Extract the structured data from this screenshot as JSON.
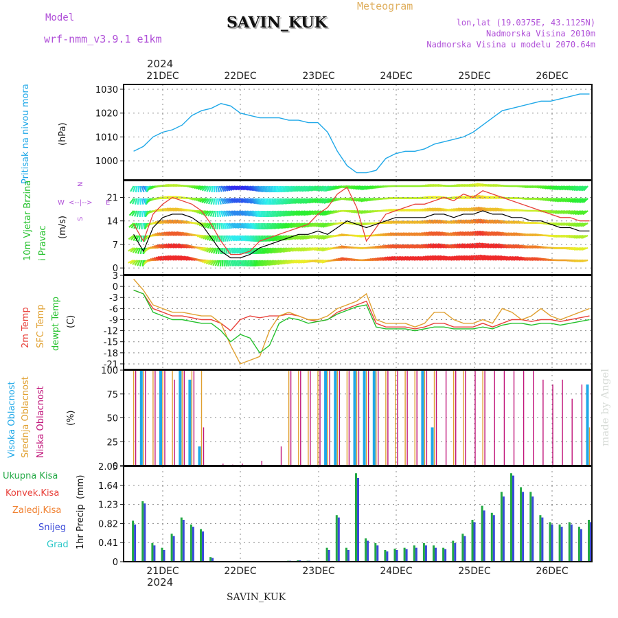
{
  "header": {
    "model_label": "Model",
    "model_name": "wrf-nmm_v3.9.1 e1km",
    "station": "SAVIN_KUK",
    "product": "Meteogram",
    "lonlat": "lon,lat (19.0375E, 43.1125N)",
    "elevation": "Nadmorska Visina 2010m",
    "model_elevation": "Nadmorska Visina u modelu 2070.64m",
    "watermark": "made by Angel",
    "footer_station": "SAVIN_KUK",
    "year_top": "2024",
    "year_bottom": "2024"
  },
  "colors": {
    "pressure": "#1fa8e8",
    "wind_speed": "#000000",
    "wind_gust": "#e8403a",
    "temp_2m": "#e8403a",
    "temp_sfc": "#e0a030",
    "dewpoint": "#22c02a",
    "cloud_high": "#1fa8e8",
    "cloud_mid": "#e0a030",
    "cloud_low": "#c0147a",
    "precip_total": "#22a844",
    "precip_conv": "#e8403a",
    "precip_frozen": "#f08030",
    "precip_snow": "#3a4ad8",
    "precip_graupel": "#2ac8c8",
    "label_purple": "#b050d8",
    "label_gold": "#e0b060"
  },
  "time_axis": {
    "day_labels": [
      "21DEC",
      "22DEC",
      "23DEC",
      "24DEC",
      "25DEC",
      "26DEC"
    ],
    "start": "2024-12-20T15:00",
    "end": "2024-12-26T12:00"
  },
  "chart_data": [
    {
      "name": "pressure",
      "type": "line",
      "ylabel": "Pritisak na nivou mora",
      "yunits": "(hPa)",
      "yticks": [
        1000,
        1010,
        1020,
        1030
      ],
      "ylim": [
        992,
        1032
      ],
      "x_hours": [
        0,
        3,
        6,
        9,
        12,
        15,
        18,
        21,
        24,
        27,
        30,
        33,
        36,
        39,
        42,
        45,
        48,
        51,
        54,
        57,
        60,
        63,
        66,
        69,
        72,
        75,
        78,
        81,
        84,
        87,
        90,
        93,
        96,
        99,
        102,
        105,
        108,
        111,
        114,
        117,
        120,
        123,
        126,
        129,
        132,
        135,
        138,
        141
      ],
      "values": [
        1004,
        1006,
        1010,
        1012,
        1013,
        1015,
        1019,
        1021,
        1022,
        1024,
        1023,
        1020,
        1019,
        1018,
        1018,
        1018,
        1017,
        1017,
        1016,
        1016,
        1012,
        1004,
        998,
        995,
        995,
        996,
        1001,
        1003,
        1004,
        1004,
        1005,
        1007,
        1008,
        1009,
        1010,
        1012,
        1015,
        1018,
        1021,
        1022,
        1023,
        1024,
        1025,
        1025,
        1026,
        1027,
        1028,
        1028
      ]
    },
    {
      "name": "wind",
      "type": "line",
      "ylabel": "10m Vjetar Brzina i Pravac",
      "yunits": "(m/s)",
      "yticks": [
        0,
        7,
        14,
        21
      ],
      "ylim": [
        -2,
        26
      ],
      "direction_legend": [
        "N",
        "S",
        "E",
        "W",
        "<--|-->"
      ],
      "x_hours": [
        0,
        3,
        6,
        9,
        12,
        15,
        18,
        21,
        24,
        27,
        30,
        33,
        36,
        39,
        42,
        45,
        48,
        51,
        54,
        57,
        60,
        63,
        66,
        69,
        72,
        75,
        78,
        81,
        84,
        87,
        90,
        93,
        96,
        99,
        102,
        105,
        108,
        111,
        114,
        117,
        120,
        123,
        126,
        129,
        132,
        135,
        138,
        141
      ],
      "series": [
        {
          "name": "speed",
          "values": [
            10,
            5,
            12,
            15,
            16,
            16,
            15,
            13,
            9,
            5,
            3,
            3,
            4,
            6,
            7,
            8,
            9,
            10,
            10,
            11,
            10,
            12,
            14,
            13,
            12,
            13,
            14,
            15,
            15,
            15,
            15,
            16,
            16,
            15,
            16,
            16,
            17,
            16,
            16,
            15,
            15,
            14,
            14,
            13,
            12,
            12,
            11,
            11
          ]
        },
        {
          "name": "gust",
          "values": [
            13,
            8,
            16,
            19,
            21,
            20,
            19,
            17,
            13,
            8,
            4,
            4,
            5,
            8,
            9,
            10,
            11,
            12,
            13,
            16,
            18,
            22,
            24,
            18,
            8,
            12,
            16,
            17,
            18,
            19,
            19,
            20,
            21,
            20,
            22,
            21,
            23,
            22,
            21,
            20,
            19,
            18,
            17,
            16,
            15,
            15,
            14,
            14
          ]
        }
      ]
    },
    {
      "name": "temperature",
      "type": "line",
      "ylabel_parts": [
        "2m Temp",
        "SFC Temp",
        "dewpt Temp"
      ],
      "yunits": "(C)",
      "yticks": [
        3,
        0,
        -3,
        -6,
        -9,
        -12,
        -15,
        -18,
        -21
      ],
      "ylim": [
        -22.5,
        3
      ],
      "x_hours": [
        0,
        3,
        6,
        9,
        12,
        15,
        18,
        21,
        24,
        27,
        30,
        33,
        36,
        39,
        42,
        45,
        48,
        51,
        54,
        57,
        60,
        63,
        66,
        69,
        72,
        75,
        78,
        81,
        84,
        87,
        90,
        93,
        96,
        99,
        102,
        105,
        108,
        111,
        114,
        117,
        120,
        123,
        126,
        129,
        132,
        135,
        138,
        141
      ],
      "series": [
        {
          "name": "2m",
          "values": [
            -1,
            -2,
            -6,
            -7,
            -8,
            -8,
            -8.5,
            -9,
            -9,
            -10,
            -12,
            -9,
            -8,
            -8.5,
            -8,
            -8,
            -7.5,
            -8,
            -9,
            -9.5,
            -9,
            -7,
            -6,
            -5,
            -4,
            -10,
            -11,
            -11,
            -11,
            -11.5,
            -11,
            -10,
            -10,
            -11,
            -11,
            -11,
            -10,
            -11,
            -10,
            -9,
            -9,
            -9.5,
            -9,
            -9,
            -9.5,
            -9,
            -8.5,
            -8
          ]
        },
        {
          "name": "sfc",
          "values": [
            2,
            -1,
            -5,
            -6,
            -7,
            -7,
            -7.5,
            -8,
            -8,
            -10,
            -16,
            -21,
            -20,
            -19,
            -12,
            -8,
            -7,
            -8,
            -9,
            -9,
            -8,
            -6,
            -5,
            -4,
            -2,
            -9,
            -10,
            -10,
            -10,
            -11,
            -10,
            -7,
            -7,
            -9,
            -10,
            -10,
            -9,
            -10,
            -6,
            -7,
            -9,
            -8,
            -6,
            -8,
            -9,
            -8,
            -7,
            -6
          ]
        },
        {
          "name": "dewpt",
          "values": [
            -1,
            -2,
            -7,
            -8,
            -9,
            -9,
            -9.5,
            -10,
            -10,
            -12,
            -15,
            -13,
            -14,
            -18,
            -16,
            -10,
            -8.5,
            -9,
            -10,
            -9.5,
            -9,
            -7.5,
            -6.5,
            -5.5,
            -5,
            -11,
            -11.5,
            -11.5,
            -11.5,
            -12,
            -11.5,
            -11,
            -11,
            -11.5,
            -11.5,
            -11.5,
            -11,
            -11.5,
            -10.5,
            -10,
            -10,
            -10.5,
            -10,
            -10,
            -10.5,
            -10,
            -9.5,
            -9
          ]
        }
      ]
    },
    {
      "name": "cloud",
      "type": "bar",
      "ylabel_parts": [
        "Visoka Oblacnost",
        "Srednja Oblacnost",
        "Niska Oblacnost"
      ],
      "yunits": "(%)",
      "yticks": [
        0,
        25,
        50,
        75,
        100
      ],
      "ylim": [
        0,
        100
      ],
      "x_hours": [
        0,
        3,
        6,
        9,
        12,
        15,
        18,
        21,
        24,
        27,
        30,
        33,
        36,
        39,
        42,
        45,
        48,
        51,
        54,
        57,
        60,
        63,
        66,
        69,
        72,
        75,
        78,
        81,
        84,
        87,
        90,
        93,
        96,
        99,
        102,
        105,
        108,
        111,
        114,
        117,
        120,
        123,
        126,
        129,
        132,
        135,
        138,
        141
      ],
      "series": [
        {
          "name": "high",
          "values": [
            0,
            100,
            0,
            100,
            0,
            100,
            90,
            20,
            0,
            0,
            0,
            0,
            0,
            0,
            0,
            0,
            0,
            0,
            0,
            0,
            100,
            100,
            0,
            100,
            100,
            100,
            0,
            0,
            0,
            0,
            100,
            40,
            0,
            0,
            0,
            0,
            0,
            0,
            0,
            0,
            0,
            0,
            0,
            0,
            0,
            0,
            0,
            85
          ]
        },
        {
          "name": "mid",
          "values": [
            100,
            100,
            100,
            100,
            100,
            100,
            100,
            100,
            0,
            0,
            0,
            0,
            0,
            0,
            0,
            0,
            100,
            100,
            100,
            100,
            100,
            100,
            100,
            100,
            100,
            100,
            100,
            100,
            100,
            100,
            100,
            100,
            0,
            100,
            100,
            0,
            100,
            0,
            0,
            0,
            0,
            0,
            0,
            0,
            0,
            0,
            0,
            40
          ]
        },
        {
          "name": "low",
          "values": [
            100,
            100,
            100,
            100,
            90,
            100,
            100,
            40,
            0,
            2,
            1,
            2,
            0,
            5,
            0,
            20,
            100,
            100,
            100,
            100,
            100,
            100,
            100,
            100,
            100,
            100,
            100,
            100,
            100,
            100,
            100,
            100,
            100,
            100,
            100,
            100,
            100,
            100,
            100,
            100,
            100,
            100,
            90,
            85,
            90,
            70,
            85,
            100
          ]
        }
      ]
    },
    {
      "name": "precip",
      "type": "bar",
      "ylabel": "1hr Precip",
      "yunits": "(mm)",
      "yticks": [
        0,
        0.41,
        0.82,
        1.23,
        1.64,
        2.05
      ],
      "ylim": [
        0,
        2.05
      ],
      "legend": [
        "Ukupna Kisa",
        "Konvek.Kisa",
        "Zaledj.Kisa",
        "Snijeg",
        "Grad"
      ],
      "x_hours": [
        0,
        3,
        6,
        9,
        12,
        15,
        18,
        21,
        24,
        27,
        30,
        33,
        36,
        39,
        42,
        45,
        48,
        51,
        54,
        57,
        60,
        63,
        66,
        69,
        72,
        75,
        78,
        81,
        84,
        87,
        90,
        93,
        96,
        99,
        102,
        105,
        108,
        111,
        114,
        117,
        120,
        123,
        126,
        129,
        132,
        135,
        138,
        141
      ],
      "series": [
        {
          "name": "total",
          "values": [
            0.88,
            1.3,
            0.4,
            0.3,
            0.6,
            0.95,
            0.8,
            0.7,
            0.1,
            0,
            0,
            0,
            0,
            0,
            0,
            0,
            0.02,
            0.03,
            0.02,
            0,
            0.3,
            1.0,
            0.3,
            1.9,
            0.5,
            0.4,
            0.25,
            0.28,
            0.3,
            0.35,
            0.4,
            0.35,
            0.3,
            0.45,
            0.6,
            0.9,
            1.2,
            1.05,
            1.5,
            1.9,
            1.6,
            1.5,
            1.0,
            0.85,
            0.8,
            0.85,
            0.75,
            0.9
          ]
        },
        {
          "name": "snow",
          "values": [
            0.8,
            1.25,
            0.35,
            0.25,
            0.55,
            0.9,
            0.75,
            0.65,
            0.08,
            0,
            0,
            0,
            0,
            0,
            0,
            0,
            0.02,
            0.03,
            0.02,
            0,
            0.25,
            0.95,
            0.25,
            1.8,
            0.45,
            0.35,
            0.22,
            0.25,
            0.27,
            0.3,
            0.35,
            0.3,
            0.27,
            0.4,
            0.55,
            0.85,
            1.1,
            1.0,
            1.4,
            1.85,
            1.5,
            1.4,
            0.95,
            0.8,
            0.75,
            0.8,
            0.7,
            0.85
          ]
        }
      ]
    }
  ]
}
